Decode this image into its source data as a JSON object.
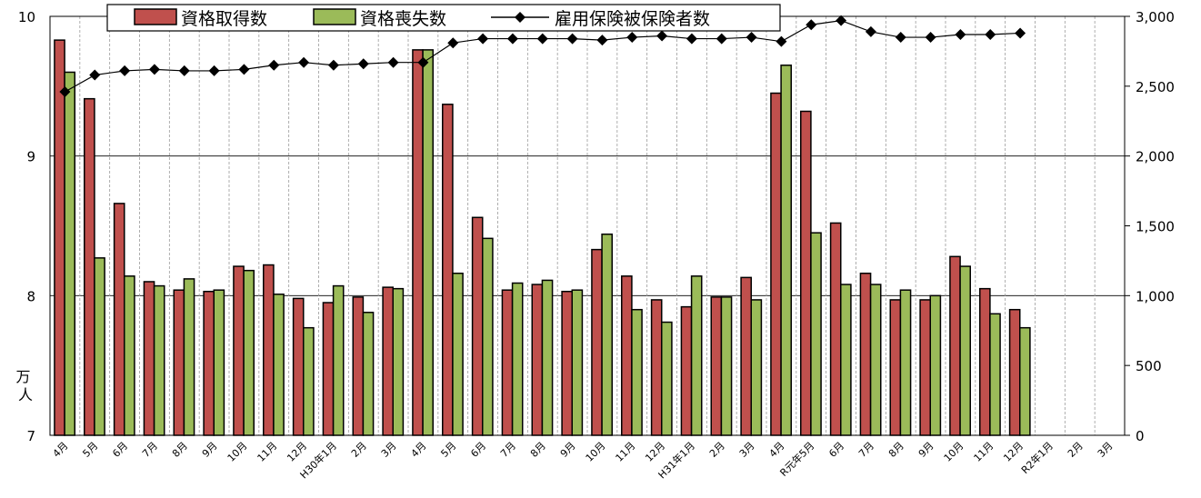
{
  "chart_data": {
    "type": "bar+line",
    "categories": [
      "4月",
      "5月",
      "6月",
      "7月",
      "8月",
      "9月",
      "10月",
      "11月",
      "12月",
      "H30年1月",
      "2月",
      "3月",
      "4月",
      "5月",
      "6月",
      "7月",
      "8月",
      "9月",
      "10月",
      "11月",
      "12月",
      "H31年1月",
      "2月",
      "3月",
      "4月",
      "R元年5月",
      "6月",
      "7月",
      "8月",
      "9月",
      "10月",
      "11月",
      "12月",
      "R2年1月",
      "2月",
      "3月"
    ],
    "left_axis": {
      "ylim": [
        7,
        10
      ],
      "ticks": [
        "7",
        "8",
        "9",
        "10"
      ],
      "unit": "万人"
    },
    "right_axis": {
      "ylim": [
        0,
        3000
      ],
      "ticks": [
        "0",
        "500",
        "1,000",
        "1,500",
        "2,000",
        "2,500",
        "3,000"
      ]
    },
    "series": [
      {
        "name": "資格取得数",
        "kind": "bar",
        "axis": "left",
        "color": "#c0504d",
        "values": [
          9.83,
          9.41,
          8.66,
          8.1,
          8.04,
          8.03,
          8.21,
          8.22,
          7.98,
          7.95,
          7.99,
          8.06,
          9.76,
          9.37,
          8.56,
          8.04,
          8.08,
          8.03,
          8.33,
          8.14,
          7.97,
          7.92,
          7.99,
          8.13,
          9.45,
          9.32,
          8.52,
          8.16,
          7.97,
          7.97,
          8.28,
          8.05,
          7.9,
          null,
          null,
          null
        ]
      },
      {
        "name": "資格喪失数",
        "kind": "bar",
        "axis": "left",
        "color": "#9bbb59",
        "values": [
          9.6,
          8.27,
          8.14,
          8.07,
          8.12,
          8.04,
          8.18,
          8.01,
          7.77,
          8.07,
          7.88,
          8.05,
          9.76,
          8.16,
          8.41,
          8.09,
          8.11,
          8.04,
          8.44,
          7.9,
          7.81,
          8.14,
          7.99,
          7.97,
          9.65,
          8.45,
          8.08,
          8.08,
          8.04,
          8.0,
          8.21,
          7.87,
          7.77,
          null,
          null,
          null
        ]
      },
      {
        "name": "雇用保険被保険者数",
        "kind": "line",
        "axis": "right",
        "color": "#000000",
        "values": [
          2460,
          2580,
          2610,
          2620,
          2610,
          2610,
          2620,
          2650,
          2670,
          2650,
          2660,
          2670,
          2670,
          2810,
          2840,
          2840,
          2840,
          2840,
          2830,
          2850,
          2860,
          2840,
          2840,
          2850,
          2820,
          2940,
          2970,
          2890,
          2850,
          2850,
          2870,
          2870,
          2880,
          null,
          null,
          null
        ]
      }
    ],
    "legend_position": "top-center",
    "grid": "horizontal major lines; dashed vertical separators"
  }
}
